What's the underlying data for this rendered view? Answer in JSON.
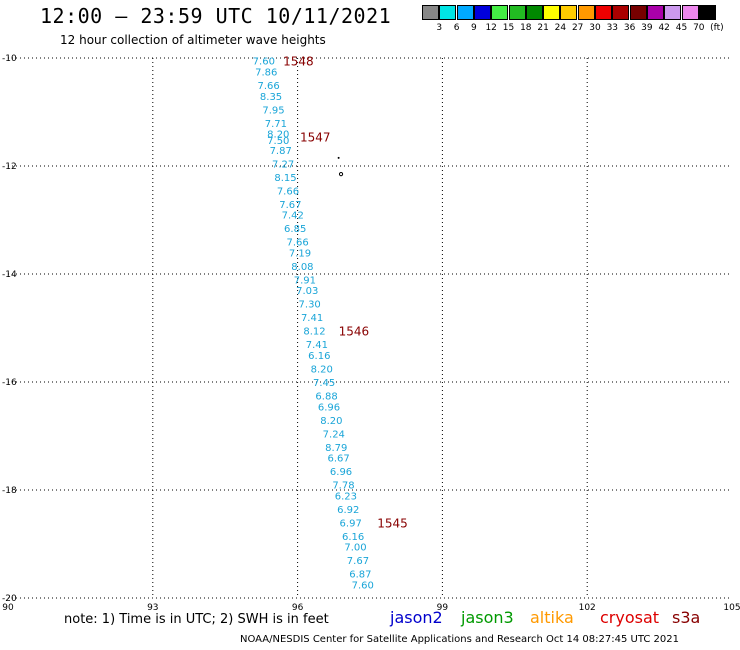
{
  "header": {
    "title": "12:00 – 23:59 UTC 10/11/2021",
    "subtitle": "12 hour collection of altimeter wave heights"
  },
  "colorbar": {
    "unit": "(ft)",
    "labels": [
      "3",
      "6",
      "9",
      "12",
      "15",
      "18",
      "21",
      "24",
      "27",
      "30",
      "33",
      "36",
      "39",
      "42",
      "45",
      "70"
    ],
    "colors": [
      "#888888",
      "#00e5e5",
      "#00aaff",
      "#0000dd",
      "#44ee44",
      "#22bb22",
      "#008800",
      "#ffff00",
      "#ffcc00",
      "#ff9900",
      "#ee0000",
      "#aa0000",
      "#770000",
      "#aa00aa",
      "#cc99ee",
      "#ee88ee",
      "#000000"
    ]
  },
  "footer": {
    "note": "note: 1) Time is in UTC; 2) SWH is in feet",
    "credit": "NOAA/NESDIS Center for Satellite Applications and Research    Oct 14 08:27:45 UTC 2021"
  },
  "legend": [
    {
      "name": "jason2",
      "color": "#0000cc"
    },
    {
      "name": "jason3",
      "color": "#009900"
    },
    {
      "name": "altika",
      "color": "#ff9900"
    },
    {
      "name": "cryosat",
      "color": "#dd0000"
    },
    {
      "name": "s3a",
      "color": "#880000"
    }
  ],
  "chart_data": {
    "type": "scatter",
    "title": "12:00 – 23:59 UTC 10/11/2021",
    "xlim": [
      90,
      105
    ],
    "ylim": [
      -20,
      -10
    ],
    "x_ticks": [
      "90",
      "93",
      "96",
      "99",
      "102",
      "105"
    ],
    "y_ticks": [
      "-10",
      "-12",
      "-14",
      "-16",
      "-18",
      "-20"
    ],
    "grid": true,
    "series": [
      {
        "name": "s3a",
        "color": "#1aa5d8",
        "points": [
          {
            "lon": 95.3,
            "lat": -10.05,
            "swh": "7.60"
          },
          {
            "lon": 95.35,
            "lat": -10.25,
            "swh": "7.86"
          },
          {
            "lon": 95.4,
            "lat": -10.5,
            "swh": "7.66"
          },
          {
            "lon": 95.45,
            "lat": -10.7,
            "swh": "8.35"
          },
          {
            "lon": 95.5,
            "lat": -10.95,
            "swh": "7.95"
          },
          {
            "lon": 95.55,
            "lat": -11.2,
            "swh": "7.71"
          },
          {
            "lon": 95.6,
            "lat": -11.4,
            "swh": "8.20"
          },
          {
            "lon": 95.6,
            "lat": -11.52,
            "swh": "7.50"
          },
          {
            "lon": 95.65,
            "lat": -11.7,
            "swh": "7.87"
          },
          {
            "lon": 95.7,
            "lat": -11.95,
            "swh": "7.27"
          },
          {
            "lon": 95.75,
            "lat": -12.2,
            "swh": "8.15"
          },
          {
            "lon": 95.8,
            "lat": -12.45,
            "swh": "7.66"
          },
          {
            "lon": 95.85,
            "lat": -12.7,
            "swh": "7.67"
          },
          {
            "lon": 95.9,
            "lat": -12.9,
            "swh": "7.42"
          },
          {
            "lon": 95.95,
            "lat": -13.15,
            "swh": "6.85"
          },
          {
            "lon": 96.0,
            "lat": -13.4,
            "swh": "7.66"
          },
          {
            "lon": 96.05,
            "lat": -13.6,
            "swh": "7.19"
          },
          {
            "lon": 96.1,
            "lat": -13.85,
            "swh": "8.08"
          },
          {
            "lon": 96.15,
            "lat": -14.1,
            "swh": "7.91"
          },
          {
            "lon": 96.2,
            "lat": -14.3,
            "swh": "7.03"
          },
          {
            "lon": 96.25,
            "lat": -14.55,
            "swh": "7.30"
          },
          {
            "lon": 96.3,
            "lat": -14.8,
            "swh": "7.41"
          },
          {
            "lon": 96.35,
            "lat": -15.05,
            "swh": "8.12"
          },
          {
            "lon": 96.4,
            "lat": -15.3,
            "swh": "7.41"
          },
          {
            "lon": 96.45,
            "lat": -15.5,
            "swh": "6.16"
          },
          {
            "lon": 96.5,
            "lat": -15.75,
            "swh": "8.20"
          },
          {
            "lon": 96.55,
            "lat": -16.0,
            "swh": "7.45"
          },
          {
            "lon": 96.6,
            "lat": -16.25,
            "swh": "6.88"
          },
          {
            "lon": 96.65,
            "lat": -16.45,
            "swh": "6.96"
          },
          {
            "lon": 96.7,
            "lat": -16.7,
            "swh": "8.20"
          },
          {
            "lon": 96.75,
            "lat": -16.95,
            "swh": "7.24"
          },
          {
            "lon": 96.8,
            "lat": -17.2,
            "swh": "8.79"
          },
          {
            "lon": 96.85,
            "lat": -17.4,
            "swh": "6.67"
          },
          {
            "lon": 96.9,
            "lat": -17.65,
            "swh": "6.96"
          },
          {
            "lon": 96.95,
            "lat": -17.9,
            "swh": "7.78"
          },
          {
            "lon": 97.0,
            "lat": -18.1,
            "swh": "6.23"
          },
          {
            "lon": 97.05,
            "lat": -18.35,
            "swh": "6.92"
          },
          {
            "lon": 97.1,
            "lat": -18.6,
            "swh": "6.97"
          },
          {
            "lon": 97.15,
            "lat": -18.85,
            "swh": "6.16"
          },
          {
            "lon": 97.2,
            "lat": -19.05,
            "swh": "7.00"
          },
          {
            "lon": 97.25,
            "lat": -19.3,
            "swh": "7.67"
          },
          {
            "lon": 97.3,
            "lat": -19.55,
            "swh": "6.87"
          },
          {
            "lon": 97.35,
            "lat": -19.75,
            "swh": "7.60"
          }
        ]
      }
    ],
    "time_labels": [
      {
        "text": "1548",
        "lon": 95.7,
        "lat": -10.05
      },
      {
        "text": "1547",
        "lon": 96.05,
        "lat": -11.45
      },
      {
        "text": "1546",
        "lon": 96.85,
        "lat": -15.05
      },
      {
        "text": "1545",
        "lon": 97.65,
        "lat": -18.6
      }
    ],
    "time_label_color": "#880000"
  }
}
